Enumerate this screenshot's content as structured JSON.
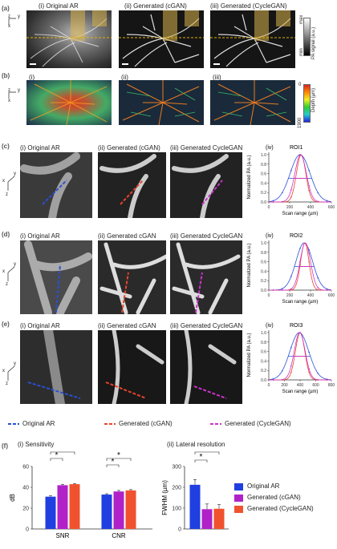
{
  "panel_labels": {
    "a": "(a)",
    "b": "(b)",
    "c": "(c)",
    "d": "(d)",
    "e": "(e)",
    "f": "(f)"
  },
  "row_a": {
    "titles": [
      "(i) Original AR",
      "(ii) Generated (cGAN)",
      "(iii) Generated (CycleGAN)"
    ],
    "axis_z": "z",
    "axis_y": "y",
    "axis_x": "x",
    "colorbar_max": "max",
    "colorbar_min": "min",
    "colorbar_label": "PA signal (a.u.)"
  },
  "row_b": {
    "titles": [
      "(i)",
      "(ii)",
      "(iii)"
    ],
    "axis_z": "z",
    "axis_y": "y",
    "axis_x": "x",
    "colorbar_top": "0",
    "colorbar_bottom": "1900",
    "colorbar_label": "Depth (µm)"
  },
  "row_c": {
    "titles": [
      "(i) Original AR",
      "(ii) Generated (cGAN)",
      "(iii) Generated CycleGAN"
    ],
    "plot_title": "(iv)",
    "roi": "ROI1"
  },
  "row_d": {
    "titles": [
      "(i) Original AR",
      "(ii) Generated cGAN",
      "(iii) Generated CycleGAN"
    ],
    "plot_title": "(iv)",
    "roi": "ROI2"
  },
  "row_e": {
    "titles": [
      "(i) Original AR",
      "(ii) Generated cGAN",
      "(iii) Generated CycleGAN"
    ],
    "plot_title": "(iv)",
    "roi": "ROI3"
  },
  "profile_axes": {
    "ylabel": "Normalized PA (a.u.)",
    "xlabel": "Scan range (µm)",
    "yticks": [
      "0.0",
      "0.2",
      "0.4",
      "0.6",
      "0.8",
      "1.0"
    ],
    "xticks_12": [
      "0",
      "200",
      "400",
      "600"
    ],
    "xticks_3": [
      "0",
      "200",
      "400",
      "600",
      "800"
    ]
  },
  "legend_lines": [
    {
      "label": "Original AR",
      "color": "#2a4fd6"
    },
    {
      "label": "Generated (cGAN)",
      "color": "#e8442a"
    },
    {
      "label": "Generated (CycleGAN)",
      "color": "#cc33cc"
    }
  ],
  "section_f": {
    "title_i": "(i)  Sensitivity",
    "title_ii": "(ii)  Lateral resolution",
    "ylabel_i": "dB",
    "ylabel_ii": "FWHM (µm)",
    "yticks_i": [
      "0",
      "20",
      "40",
      "60"
    ],
    "yticks_ii": [
      "0",
      "100",
      "200",
      "300"
    ],
    "star": "*",
    "legend": [
      {
        "label": "Original AR",
        "color": "#1f3fe0"
      },
      {
        "label": "Generated (cGAN)",
        "color": "#b022c8"
      },
      {
        "label": "Generated (CycleGAN)",
        "color": "#f0522d"
      }
    ]
  },
  "chart_data": [
    {
      "type": "bar",
      "title": "(i)  Sensitivity",
      "ylabel": "dB",
      "ylim": [
        0,
        60
      ],
      "categories": [
        "SNR",
        "CNR"
      ],
      "series": [
        {
          "name": "Original AR",
          "values": [
            31,
            33
          ],
          "errors": [
            0.8,
            0.8
          ]
        },
        {
          "name": "Generated (cGAN)",
          "values": [
            42,
            36
          ],
          "errors": [
            0.9,
            1.0
          ]
        },
        {
          "name": "Generated (CycleGAN)",
          "values": [
            43,
            37
          ],
          "errors": [
            0.6,
            0.8
          ]
        }
      ],
      "significance": [
        "*",
        "*",
        "*",
        "*"
      ]
    },
    {
      "type": "bar",
      "title": "(ii)  Lateral resolution",
      "ylabel": "FWHM (µm)",
      "ylim": [
        0,
        300
      ],
      "categories": [
        ""
      ],
      "series": [
        {
          "name": "Original AR",
          "values": [
            212
          ],
          "errors": [
            25
          ]
        },
        {
          "name": "Generated (cGAN)",
          "values": [
            95
          ],
          "errors": [
            25
          ]
        },
        {
          "name": "Generated (CycleGAN)",
          "values": [
            97
          ],
          "errors": [
            20
          ]
        }
      ],
      "significance": [
        "*",
        "*"
      ]
    },
    {
      "type": "line",
      "title": "ROI1",
      "xlabel": "Scan range (µm)",
      "ylabel": "Normalized PA (a.u.)",
      "xlim": [
        0,
        600
      ],
      "ylim": [
        0,
        1.05
      ],
      "series": [
        {
          "name": "Original AR",
          "center": 300,
          "sigma": 95
        },
        {
          "name": "Generated (cGAN)",
          "center": 310,
          "sigma": 45
        },
        {
          "name": "Generated (CycleGAN)",
          "center": 305,
          "sigma": 55
        }
      ]
    },
    {
      "type": "line",
      "title": "ROI2",
      "xlabel": "Scan range (µm)",
      "ylabel": "Normalized PA (a.u.)",
      "xlim": [
        0,
        600
      ],
      "ylim": [
        0,
        1.05
      ],
      "series": [
        {
          "name": "Original AR",
          "center": 340,
          "sigma": 80
        },
        {
          "name": "Generated (cGAN)",
          "center": 345,
          "sigma": 40
        },
        {
          "name": "Generated (CycleGAN)",
          "center": 350,
          "sigma": 50
        }
      ]
    },
    {
      "type": "line",
      "title": "ROI3",
      "xlabel": "Scan range (µm)",
      "ylabel": "Normalized PA (a.u.)",
      "xlim": [
        0,
        800
      ],
      "ylim": [
        0,
        1.05
      ],
      "series": [
        {
          "name": "Original AR",
          "center": 390,
          "sigma": 120
        },
        {
          "name": "Generated (cGAN)",
          "center": 400,
          "sigma": 60
        },
        {
          "name": "Generated (CycleGAN)",
          "center": 395,
          "sigma": 70
        }
      ]
    }
  ]
}
